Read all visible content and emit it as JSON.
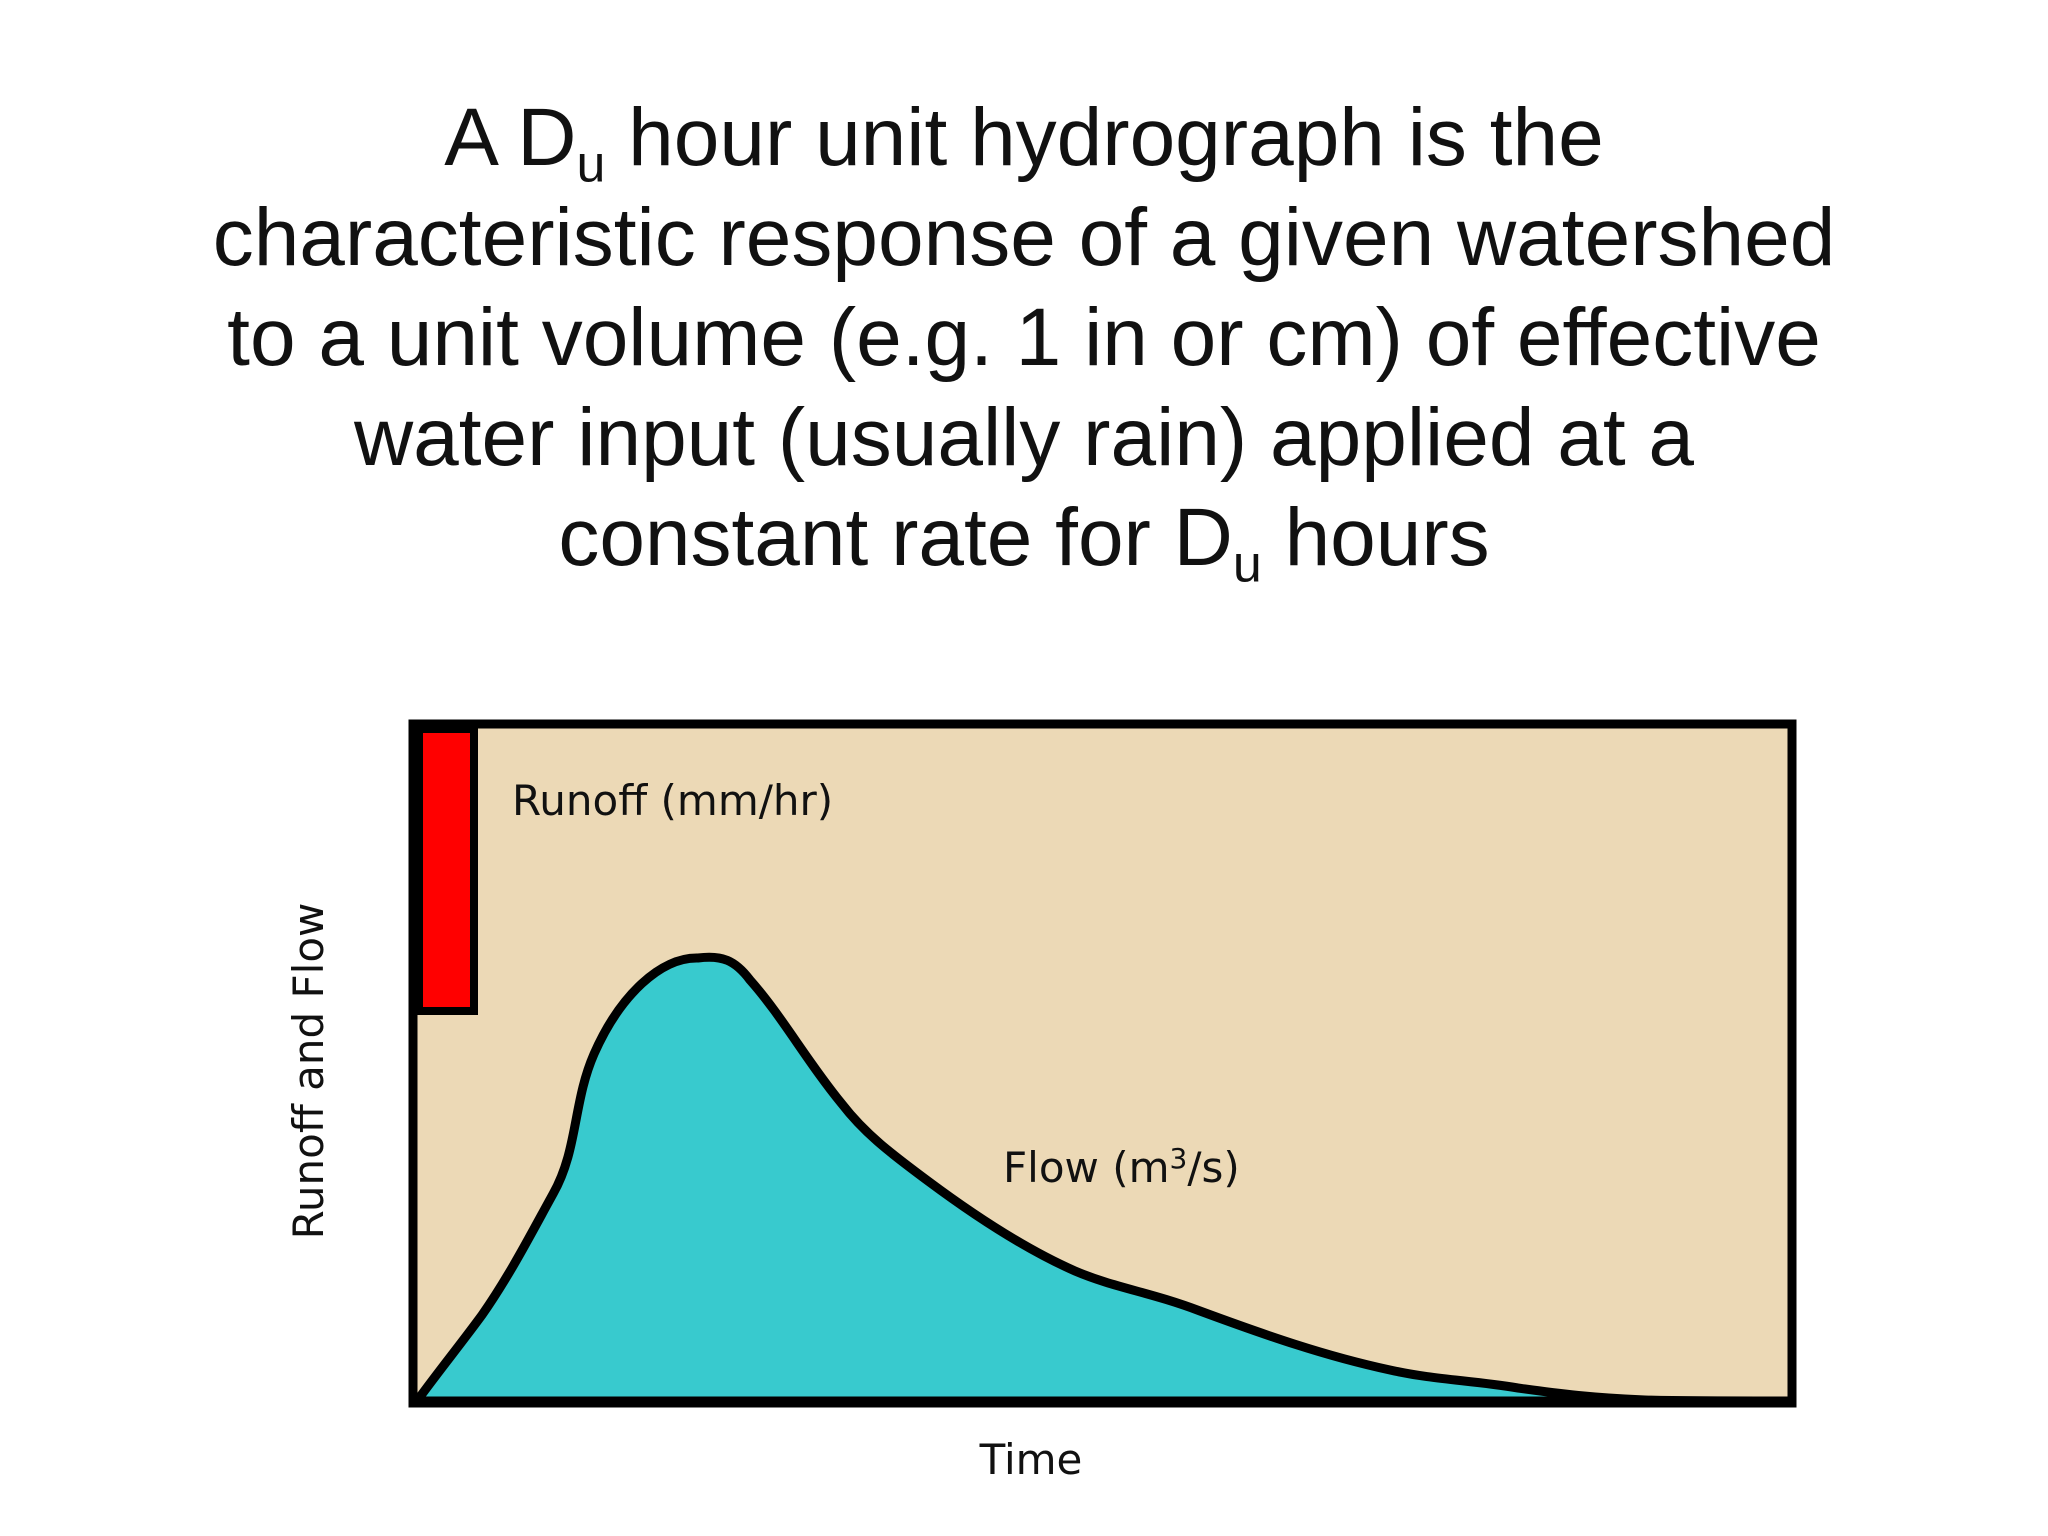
{
  "slide": {
    "title_lines": [
      {
        "before": "A D",
        "sub": "u",
        "after": " hour unit hydrograph is the"
      },
      {
        "text": "characteristic response of a given watershed"
      },
      {
        "text": "to a unit volume (e.g. 1 in or cm) of effective"
      },
      {
        "text": "water input (usually rain) applied at a"
      },
      {
        "before": "constant rate for D",
        "sub": "u",
        "after": " hours"
      }
    ]
  },
  "diagram": {
    "runoff_label": "Runoff (mm/hr)",
    "flow_label_prefix": "Flow (m",
    "flow_label_sup": "3",
    "flow_label_suffix": "/s)",
    "y_axis_label": "Runoff and Flow",
    "x_axis_label": "Time",
    "colors": {
      "background": "#ecd9b6",
      "runoff": "#ff0000",
      "flow": "#38cace",
      "stroke": "#000000"
    }
  }
}
